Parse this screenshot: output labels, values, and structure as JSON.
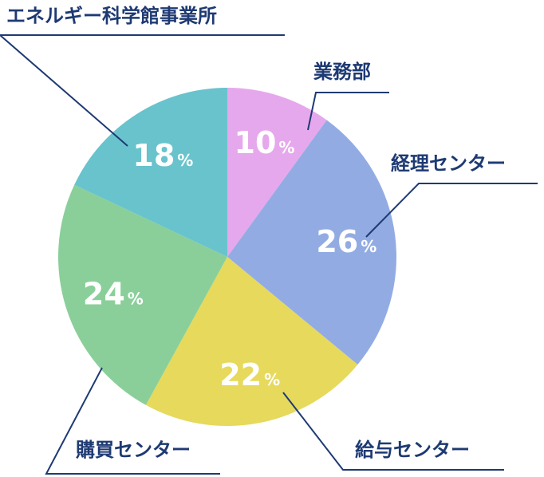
{
  "chart_data": {
    "type": "pie",
    "unit": "%",
    "start": "12 o'clock",
    "direction": "clockwise",
    "colors": {
      "label_text": "#1e3a73",
      "leader_line": "#1e3a73",
      "percent_text": "#ffffff"
    },
    "slices": [
      {
        "label": "業務部",
        "value": 10,
        "color": "#e6a8ec"
      },
      {
        "label": "経理センター",
        "value": 26,
        "color": "#92ace3"
      },
      {
        "label": "給与センター",
        "value": 22,
        "color": "#e6d95c"
      },
      {
        "label": "購買センター",
        "value": 24,
        "color": "#8acf9a"
      },
      {
        "label": "エネルギー科学館事業所",
        "value": 18,
        "color": "#68c3cc"
      }
    ]
  }
}
